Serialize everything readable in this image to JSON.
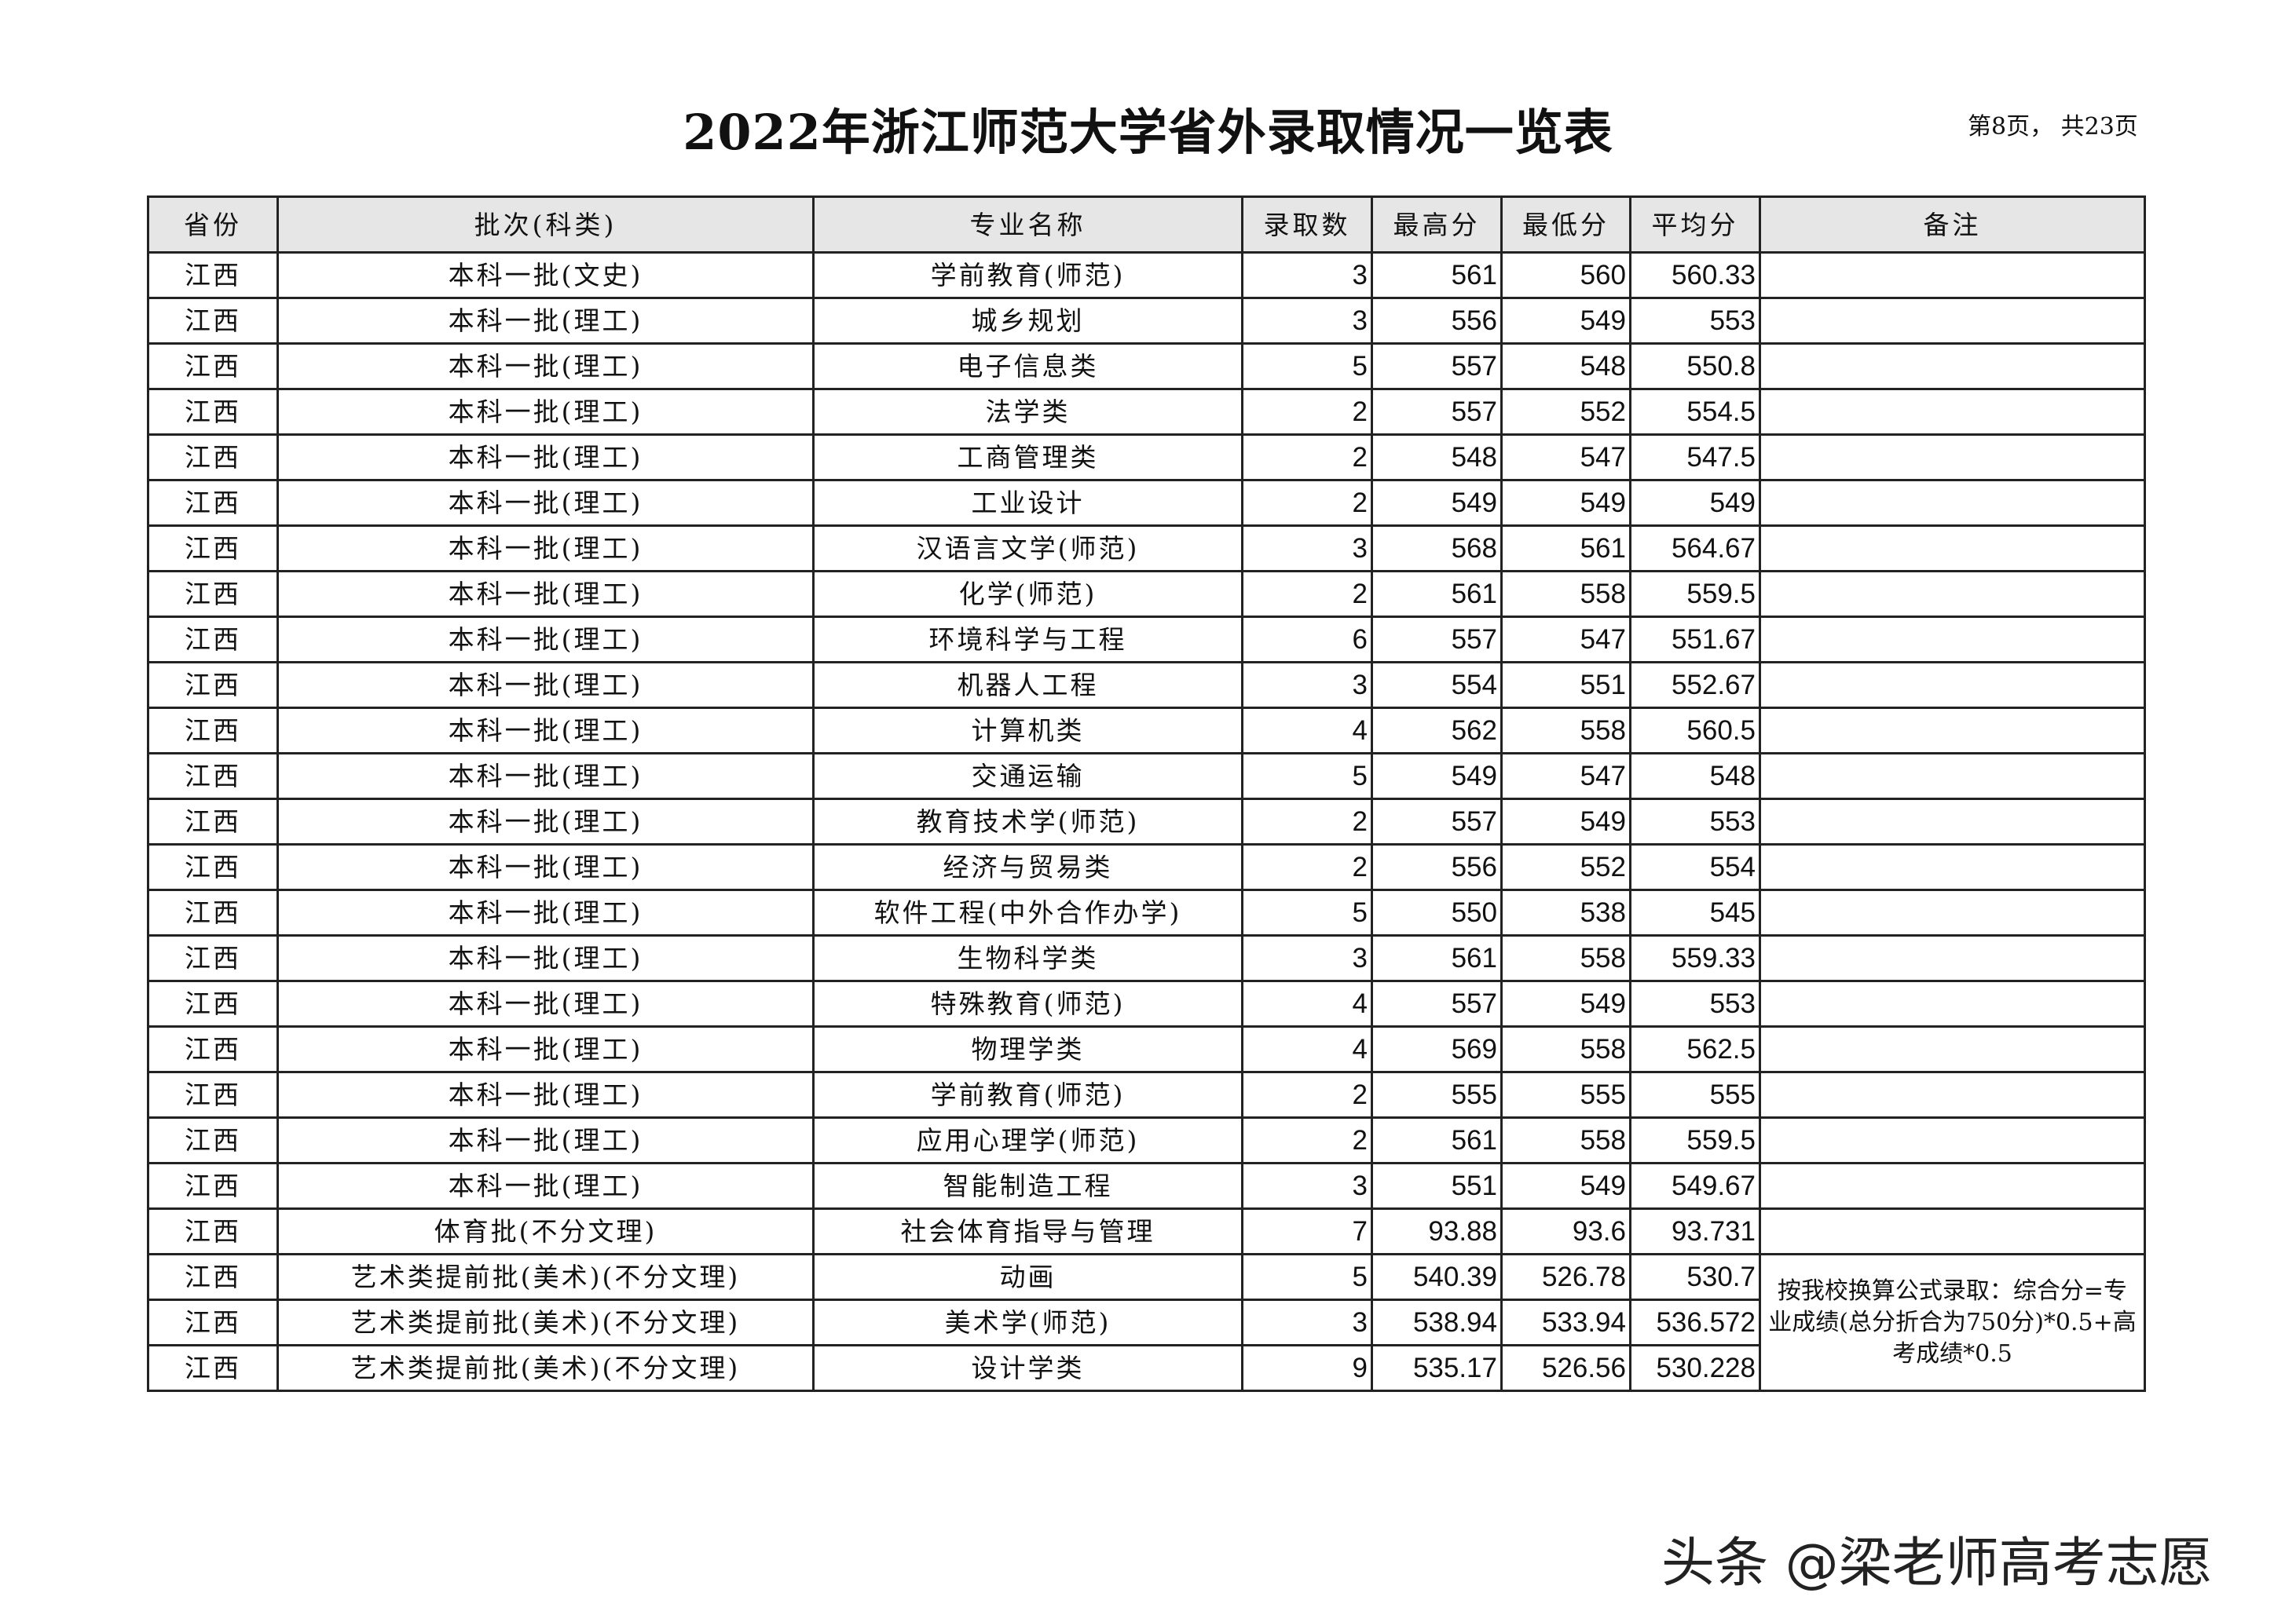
{
  "title": "2022年浙江师范大学省外录取情况一览表",
  "page_info": "第8页， 共23页",
  "columns": [
    "省份",
    "批次(科类)",
    "专业名称",
    "录取数",
    "最高分",
    "最低分",
    "平均分",
    "备注"
  ],
  "rows": [
    [
      "江西",
      "本科一批(文史)",
      "学前教育(师范)",
      "3",
      "561",
      "560",
      "560.33"
    ],
    [
      "江西",
      "本科一批(理工)",
      "城乡规划",
      "3",
      "556",
      "549",
      "553"
    ],
    [
      "江西",
      "本科一批(理工)",
      "电子信息类",
      "5",
      "557",
      "548",
      "550.8"
    ],
    [
      "江西",
      "本科一批(理工)",
      "法学类",
      "2",
      "557",
      "552",
      "554.5"
    ],
    [
      "江西",
      "本科一批(理工)",
      "工商管理类",
      "2",
      "548",
      "547",
      "547.5"
    ],
    [
      "江西",
      "本科一批(理工)",
      "工业设计",
      "2",
      "549",
      "549",
      "549"
    ],
    [
      "江西",
      "本科一批(理工)",
      "汉语言文学(师范)",
      "3",
      "568",
      "561",
      "564.67"
    ],
    [
      "江西",
      "本科一批(理工)",
      "化学(师范)",
      "2",
      "561",
      "558",
      "559.5"
    ],
    [
      "江西",
      "本科一批(理工)",
      "环境科学与工程",
      "6",
      "557",
      "547",
      "551.67"
    ],
    [
      "江西",
      "本科一批(理工)",
      "机器人工程",
      "3",
      "554",
      "551",
      "552.67"
    ],
    [
      "江西",
      "本科一批(理工)",
      "计算机类",
      "4",
      "562",
      "558",
      "560.5"
    ],
    [
      "江西",
      "本科一批(理工)",
      "交通运输",
      "5",
      "549",
      "547",
      "548"
    ],
    [
      "江西",
      "本科一批(理工)",
      "教育技术学(师范)",
      "2",
      "557",
      "549",
      "553"
    ],
    [
      "江西",
      "本科一批(理工)",
      "经济与贸易类",
      "2",
      "556",
      "552",
      "554"
    ],
    [
      "江西",
      "本科一批(理工)",
      "软件工程(中外合作办学)",
      "5",
      "550",
      "538",
      "545"
    ],
    [
      "江西",
      "本科一批(理工)",
      "生物科学类",
      "3",
      "561",
      "558",
      "559.33"
    ],
    [
      "江西",
      "本科一批(理工)",
      "特殊教育(师范)",
      "4",
      "557",
      "549",
      "553"
    ],
    [
      "江西",
      "本科一批(理工)",
      "物理学类",
      "4",
      "569",
      "558",
      "562.5"
    ],
    [
      "江西",
      "本科一批(理工)",
      "学前教育(师范)",
      "2",
      "555",
      "555",
      "555"
    ],
    [
      "江西",
      "本科一批(理工)",
      "应用心理学(师范)",
      "2",
      "561",
      "558",
      "559.5"
    ],
    [
      "江西",
      "本科一批(理工)",
      "智能制造工程",
      "3",
      "551",
      "549",
      "549.67"
    ],
    [
      "江西",
      "体育批(不分文理)",
      "社会体育指导与管理",
      "7",
      "93.88",
      "93.6",
      "93.731"
    ],
    [
      "江西",
      "艺术类提前批(美术)(不分文理)",
      "动画",
      "5",
      "540.39",
      "526.78",
      "530.7"
    ],
    [
      "江西",
      "艺术类提前批(美术)(不分文理)",
      "美术学(师范)",
      "3",
      "538.94",
      "533.94",
      "536.572"
    ],
    [
      "江西",
      "艺术类提前批(美术)(不分文理)",
      "设计学类",
      "9",
      "535.17",
      "526.56",
      "530.228"
    ]
  ],
  "art_remark": "按我校换算公式录取：综合分=专业成绩(总分折合为750分)*0.5+高考成绩*0.5",
  "watermark": "头条 @梁老师高考志愿"
}
